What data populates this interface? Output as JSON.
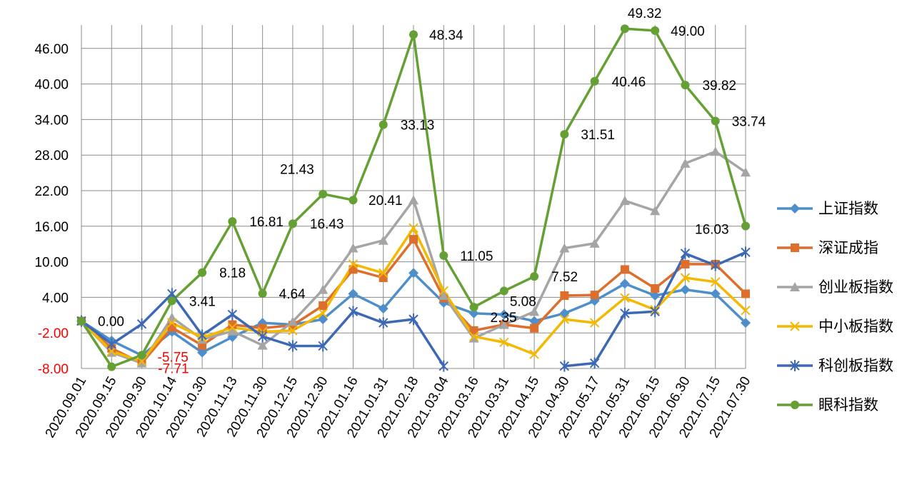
{
  "chart_data": {
    "type": "line",
    "x": [
      "2020.09.01",
      "2020.09.15",
      "2020.09.30",
      "2020.10.14",
      "2020.10.30",
      "2020.11.13",
      "2020.11.30",
      "2020.12.15",
      "2020.12.30",
      "2021.01.16",
      "2021.01.31",
      "2021.02.18",
      "2021.03.04",
      "2021.03.16",
      "2021.03.31",
      "2021.04.15",
      "2021.04.30",
      "2021.05.17",
      "2021.05.31",
      "2021.06.15",
      "2021.06.30",
      "2021.07.15",
      "2021.07.30"
    ],
    "y_ticks": [
      "-8.00",
      "-2.00",
      "4.00",
      "10.00",
      "16.00",
      "22.00",
      "28.00",
      "34.00",
      "40.00",
      "46.00"
    ],
    "ylim": [
      -8,
      50
    ],
    "grid": true,
    "legend_position": "right",
    "series": [
      {
        "name": "上证指数",
        "color": "#4E8FCB",
        "marker": "diamond",
        "values": [
          0,
          -3.3,
          -5.8,
          -1.8,
          -5.3,
          -2.7,
          -0.3,
          -0.6,
          0.3,
          4.6,
          2.1,
          8.1,
          3.1,
          1.3,
          1.1,
          0,
          1.3,
          3.4,
          6.3,
          4.3,
          5.3,
          4.6,
          -0.3
        ]
      },
      {
        "name": "深证成指",
        "color": "#DD6E2C",
        "marker": "square",
        "values": [
          0,
          -4.6,
          -7.1,
          -1.1,
          -4.1,
          -0.6,
          -1.2,
          -0.7,
          2.6,
          8.7,
          7.3,
          13.8,
          3.9,
          -1.6,
          -0.6,
          -1.2,
          4.3,
          4.4,
          8.7,
          5.5,
          9.6,
          9.6,
          4.6
        ]
      },
      {
        "name": "创业板指数",
        "color": "#A5A5A5",
        "marker": "triangle",
        "values": [
          0,
          -5.3,
          -7.1,
          0.6,
          -3.1,
          -1.7,
          -4.1,
          -0.1,
          5.3,
          12.3,
          13.6,
          20.41,
          4.3,
          -2.9,
          -0.6,
          1.6,
          12.3,
          13.1,
          20.3,
          18.6,
          26.6,
          28.6,
          25.1
        ]
      },
      {
        "name": "中小板指数",
        "color": "#F5B800",
        "marker": "x",
        "values": [
          0,
          -5.1,
          -6.8,
          -0.3,
          -2.8,
          -1.1,
          -1.8,
          -1.6,
          1.3,
          9.6,
          8.1,
          15.7,
          5.1,
          -2.6,
          -3.6,
          -5.6,
          0.3,
          -0.3,
          3.9,
          1.9,
          7.3,
          6.6,
          1.8
        ]
      },
      {
        "name": "科创板指数",
        "color": "#3D68B5",
        "marker": "star",
        "values": [
          0,
          -3.9,
          -0.5,
          4.6,
          -2.4,
          1.1,
          -2.6,
          -4.2,
          -4.2,
          1.6,
          -0.3,
          0.3,
          -7.6,
          null,
          null,
          null,
          -7.6,
          -7.1,
          1.3,
          1.6,
          11.4,
          9.4,
          11.6
        ]
      },
      {
        "name": "眼科指数",
        "color": "#64A034",
        "marker": "circle",
        "values": [
          0,
          -7.71,
          -5.75,
          3.41,
          8.18,
          16.81,
          4.64,
          16.43,
          21.43,
          20.41,
          33.13,
          48.34,
          11.05,
          2.35,
          5.08,
          7.52,
          31.51,
          40.46,
          49.32,
          49.0,
          39.82,
          33.74,
          16.03
        ]
      }
    ],
    "annotations": [
      {
        "text": "0.00",
        "x_index": 0,
        "value": 0,
        "dx": 23,
        "dy": 0,
        "color": "#000000"
      },
      {
        "text": "-7.71",
        "x_index": 1,
        "value": -7.71,
        "dx": 65,
        "dy": 2,
        "color": "#FF0000"
      },
      {
        "text": "-5.75",
        "x_index": 2,
        "value": -5.75,
        "dx": 22,
        "dy": 2,
        "color": "#FF0000"
      },
      {
        "text": "3.41",
        "x_index": 3,
        "value": 3.41,
        "dx": 24,
        "dy": 0,
        "color": "#000000"
      },
      {
        "text": "8.18",
        "x_index": 4,
        "value": 8.18,
        "dx": 24,
        "dy": 0,
        "color": "#000000"
      },
      {
        "text": "16.81",
        "x_index": 5,
        "value": 16.81,
        "dx": 24,
        "dy": 0,
        "color": "#000000"
      },
      {
        "text": "4.64",
        "x_index": 6,
        "value": 4.64,
        "dx": 23,
        "dy": 0,
        "color": "#000000"
      },
      {
        "text": "16.43",
        "x_index": 7,
        "value": 16.43,
        "dx": 24,
        "dy": 0,
        "color": "#000000"
      },
      {
        "text": "21.43",
        "x_index": 8,
        "value": 21.43,
        "dx": -60,
        "dy": -35,
        "color": "#000000"
      },
      {
        "text": "20.41",
        "x_index": 11,
        "value": 20.41,
        "dx": -63,
        "dy": 0,
        "color": "#000000"
      },
      {
        "text": "33.13",
        "x_index": 10,
        "value": 33.13,
        "dx": 24,
        "dy": 0,
        "color": "#000000"
      },
      {
        "text": "48.34",
        "x_index": 11,
        "value": 48.34,
        "dx": 22,
        "dy": 0,
        "color": "#000000"
      },
      {
        "text": "11.05",
        "x_index": 12,
        "value": 11.05,
        "dx": 23,
        "dy": 0,
        "color": "#000000"
      },
      {
        "text": "2.35",
        "x_index": 13,
        "value": 2.35,
        "dx": 23,
        "dy": 14,
        "color": "#000000"
      },
      {
        "text": "5.08",
        "x_index": 14,
        "value": 5.08,
        "dx": 8,
        "dy": 14,
        "color": "#000000"
      },
      {
        "text": "7.52",
        "x_index": 15,
        "value": 7.52,
        "dx": 24,
        "dy": 0,
        "color": "#000000"
      },
      {
        "text": "31.51",
        "x_index": 16,
        "value": 31.51,
        "dx": 23,
        "dy": 0,
        "color": "#000000"
      },
      {
        "text": "40.46",
        "x_index": 17,
        "value": 40.46,
        "dx": 24,
        "dy": 0,
        "color": "#000000"
      },
      {
        "text": "49.32",
        "x_index": 18,
        "value": 49.32,
        "dx": 4,
        "dy": -22,
        "color": "#000000"
      },
      {
        "text": "49.00",
        "x_index": 19,
        "value": 49.0,
        "dx": 22,
        "dy": 0,
        "color": "#000000"
      },
      {
        "text": "39.82",
        "x_index": 20,
        "value": 39.82,
        "dx": 24,
        "dy": 0,
        "color": "#000000"
      },
      {
        "text": "33.74",
        "x_index": 21,
        "value": 33.74,
        "dx": 23,
        "dy": 0,
        "color": "#000000"
      },
      {
        "text": "16.03",
        "x_index": 22,
        "value": 16.03,
        "dx": -71,
        "dy": 4,
        "color": "#000000"
      }
    ]
  }
}
